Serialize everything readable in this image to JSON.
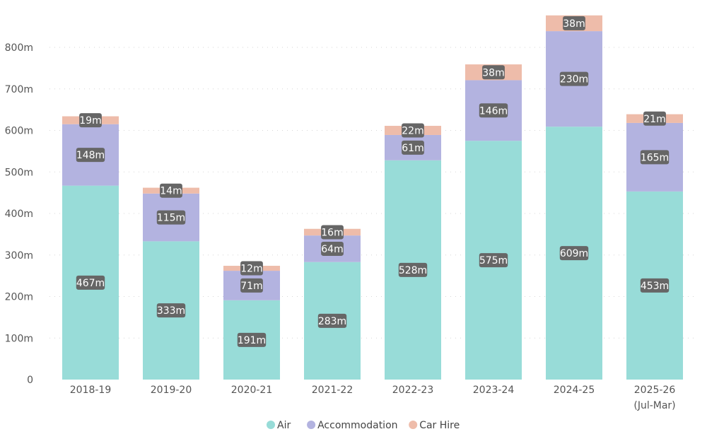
{
  "chart_data": {
    "type": "bar",
    "stacked": true,
    "categories": [
      "2018-19",
      "2019-20",
      "2020-21",
      "2021-22",
      "2022-23",
      "2023-24",
      "2024-25",
      "2025-26\n(Jul-Mar)"
    ],
    "series": [
      {
        "name": "Air",
        "values": [
          467,
          333,
          191,
          283,
          528,
          575,
          609,
          453
        ],
        "labels": [
          "467m",
          "333m",
          "191m",
          "283m",
          "528m",
          "575m",
          "609m",
          "453m"
        ],
        "color": "#98dcd8"
      },
      {
        "name": "Accommodation",
        "values": [
          148,
          115,
          71,
          64,
          61,
          146,
          230,
          165
        ],
        "labels": [
          "148m",
          "115m",
          "71m",
          "64m",
          "61m",
          "146m",
          "230m",
          "165m"
        ],
        "color": "#b3b3e0"
      },
      {
        "name": "Car Hire",
        "values": [
          19,
          14,
          12,
          16,
          22,
          38,
          38,
          21
        ],
        "labels": [
          "19m",
          "14m",
          "12m",
          "16m",
          "22m",
          "38m",
          "38m",
          "21m"
        ],
        "color": "#eebcaa"
      }
    ],
    "y_ticks": [
      {
        "value": 0,
        "label": "0"
      },
      {
        "value": 100,
        "label": "100m"
      },
      {
        "value": 200,
        "label": "200m"
      },
      {
        "value": 300,
        "label": "300m"
      },
      {
        "value": 400,
        "label": "400m"
      },
      {
        "value": 500,
        "label": "500m"
      },
      {
        "value": 600,
        "label": "600m"
      },
      {
        "value": 700,
        "label": "700m"
      },
      {
        "value": 800,
        "label": "800m"
      }
    ],
    "ylim": [
      0,
      880
    ],
    "grid": true,
    "legend_position": "bottom-center",
    "data_label_bg": "#666666"
  }
}
